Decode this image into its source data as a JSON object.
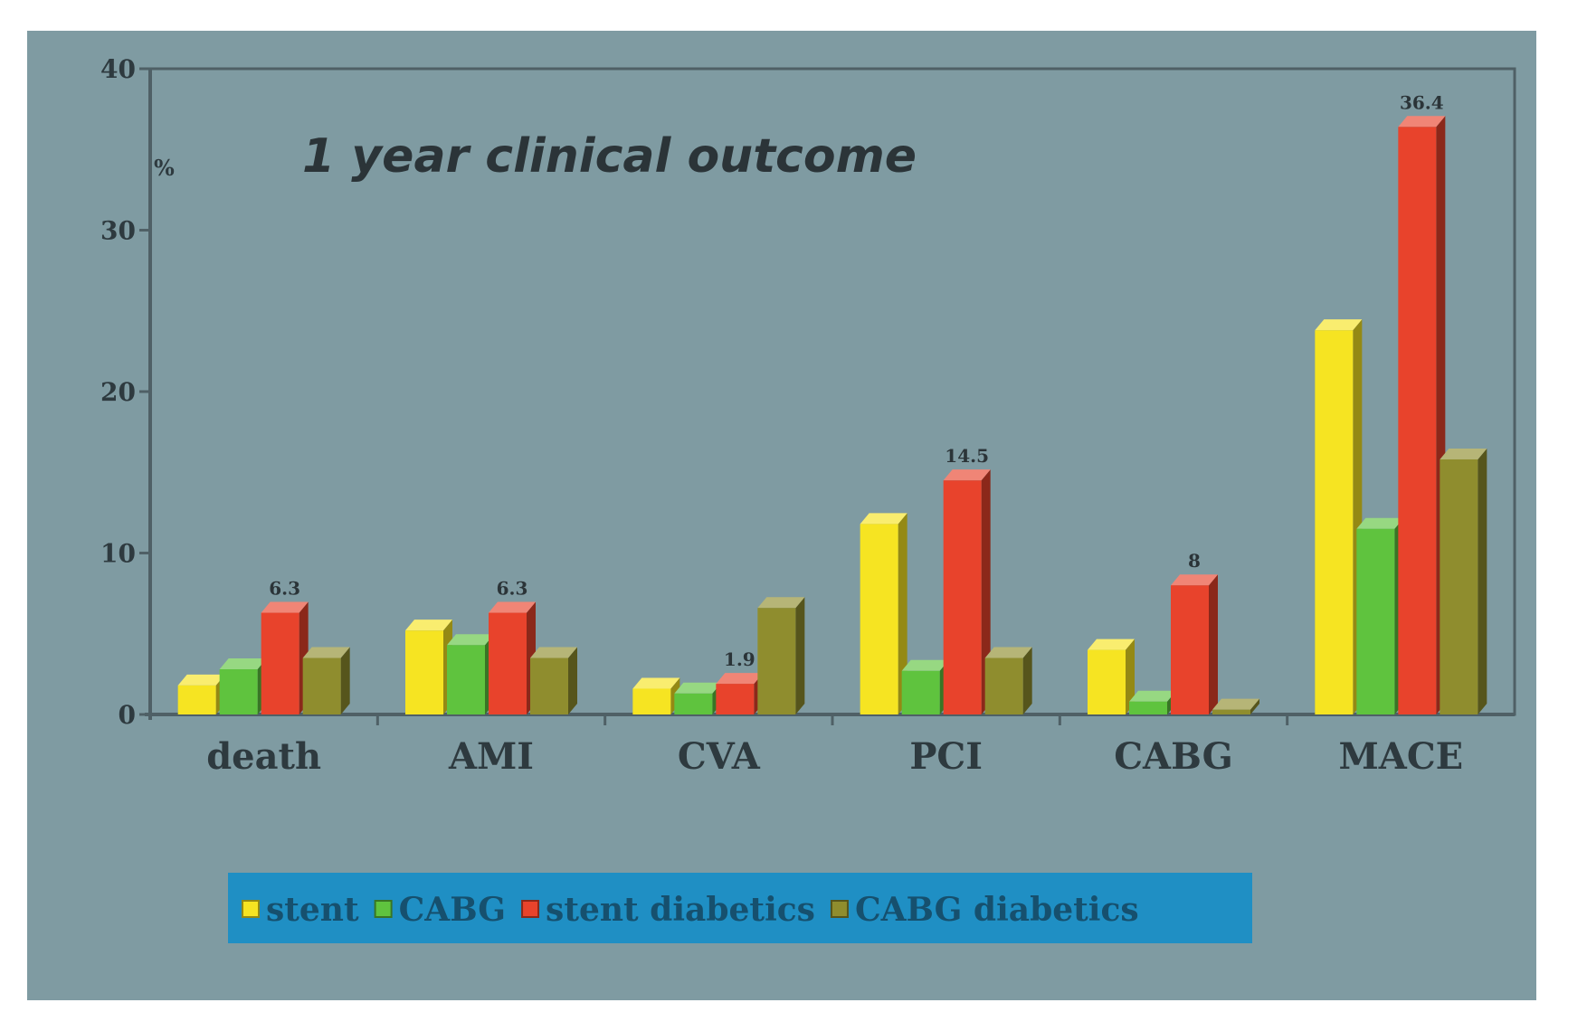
{
  "chart_data": {
    "type": "bar",
    "title": "1 year clinical outcome",
    "ylabel": "%",
    "ylim": [
      0,
      40
    ],
    "yticks": [
      "0",
      "10",
      "20",
      "30",
      "40"
    ],
    "categories": [
      "death",
      "AMI",
      "CVA",
      "PCI",
      "CABG",
      "MACE"
    ],
    "series": [
      {
        "name": "stent",
        "color": "#f6e422",
        "values": [
          1.8,
          5.2,
          1.6,
          11.8,
          4.0,
          23.8
        ]
      },
      {
        "name": "CABG",
        "color": "#5fc33e",
        "values": [
          2.8,
          4.3,
          1.3,
          2.7,
          0.8,
          11.5
        ]
      },
      {
        "name": "stent diabetics",
        "color": "#e8432c",
        "values": [
          6.3,
          6.3,
          1.9,
          14.5,
          8.0,
          36.4
        ]
      },
      {
        "name": "CABG diabetics",
        "color": "#8f8d2e",
        "values": [
          3.5,
          3.5,
          6.6,
          3.5,
          0.3,
          15.8
        ]
      }
    ],
    "data_labels": [
      {
        "category": "death",
        "series": "stent diabetics",
        "text": "6.3"
      },
      {
        "category": "AMI",
        "series": "stent diabetics",
        "text": "6.3"
      },
      {
        "category": "CVA",
        "series": "stent diabetics",
        "text": "1.9"
      },
      {
        "category": "PCI",
        "series": "stent diabetics",
        "text": "14.5"
      },
      {
        "category": "CABG",
        "series": "stent diabetics",
        "text": "8"
      },
      {
        "category": "MACE",
        "series": "stent diabetics",
        "text": "36.4"
      }
    ],
    "legend_position": "bottom-center",
    "colors": {
      "background": "#7f9ba2",
      "legend_background": "#1f8fc4",
      "axis": "#4f6066",
      "text": "#2e3a3f"
    }
  }
}
